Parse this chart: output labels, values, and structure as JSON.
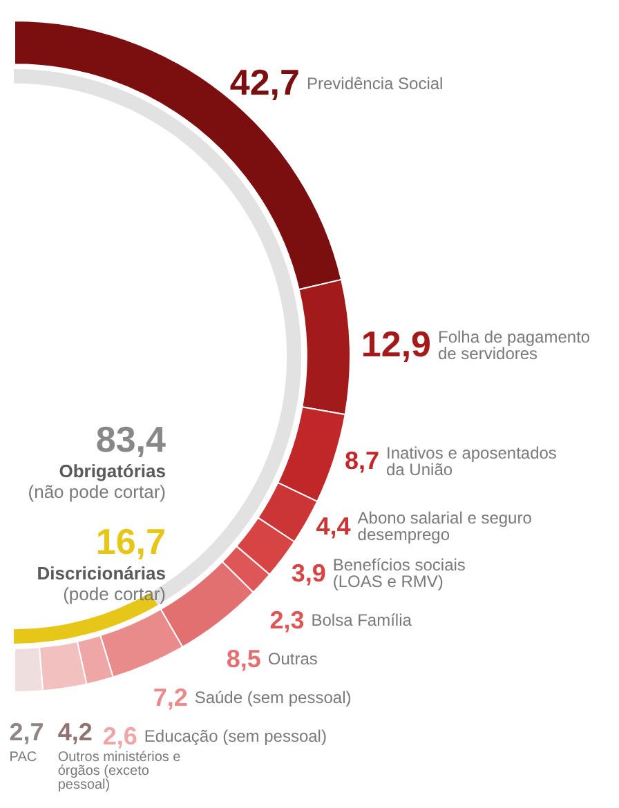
{
  "chart_data": [
    {
      "type": "donut",
      "categories": [
        "Previdência Social",
        "Folha de pagamento de servidores",
        "Inativos e aposentados da União",
        "Abono salarial e seguro desemprego",
        "Benefícios sociais (LOAS e RMV)",
        "Bolsa Família",
        "Outras",
        "Saúde (sem pessoal)",
        "Educação (sem pessoal)",
        "Outros ministérios e órgãos (exceto pessoal)",
        "PAC"
      ],
      "values": [
        42.7,
        12.9,
        8.7,
        4.4,
        3.9,
        2.3,
        8.5,
        7.2,
        2.6,
        4.2,
        2.7
      ],
      "value_labels": [
        "42,7",
        "12,9",
        "8,7",
        "4,4",
        "3,9",
        "2,3",
        "8,5",
        "7,2",
        "2,6",
        "4,2",
        "2,7"
      ],
      "colors": [
        "#7b0e0e",
        "#a31a1a",
        "#bf2729",
        "#cc3535",
        "#d64444",
        "#de5656",
        "#e37070",
        "#ea8b8b",
        "#efa6a6",
        "#f3c0c0",
        "#efdede"
      ]
    },
    {
      "type": "donut",
      "categories": [
        "Obrigatórias (não pode cortar)",
        "Discricionárias (pode cortar)"
      ],
      "values": [
        83.4,
        16.7
      ],
      "value_labels": [
        "83,4",
        "16,7"
      ],
      "colors": [
        "#e2e2e2",
        "#e6c619"
      ]
    }
  ]
}
